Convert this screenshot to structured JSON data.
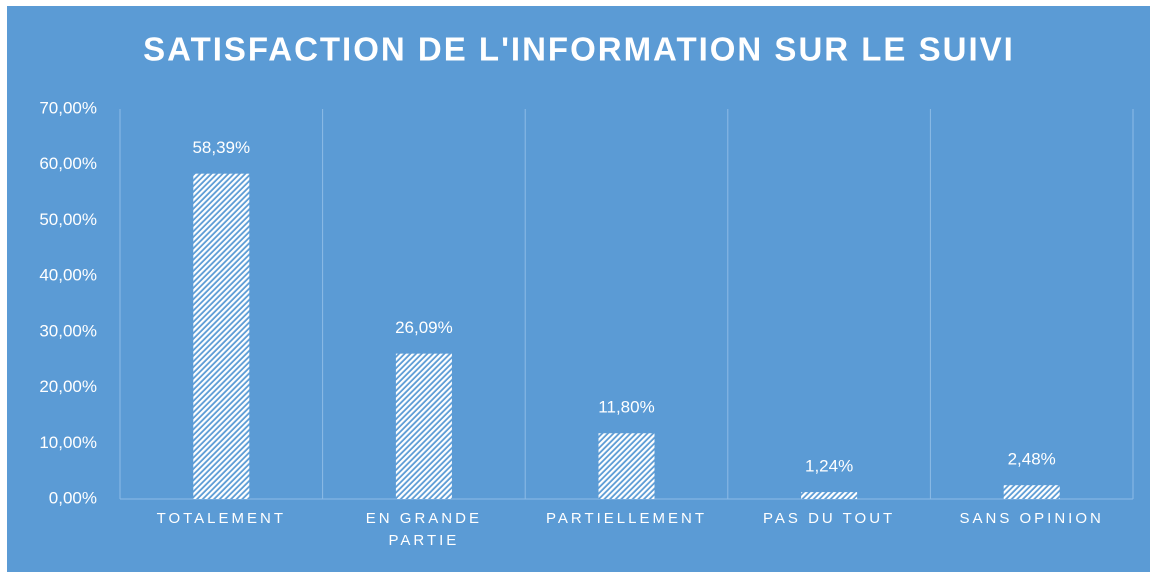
{
  "chart_data": {
    "type": "bar",
    "title": "SATISFACTION DE L'INFORMATION SUR LE SUIVI",
    "categories": [
      "TOTALEMENT",
      "EN GRANDE PARTIE",
      "PARTIELLEMENT",
      "PAS DU TOUT",
      "SANS OPINION"
    ],
    "values": [
      58.39,
      26.09,
      11.8,
      1.24,
      2.48
    ],
    "value_labels": [
      "58,39%",
      "26,09%",
      "11,80%",
      "1,24%",
      "2,48%"
    ],
    "color": "#ffffff",
    "ylim": [
      0,
      70
    ],
    "yticks": [
      {
        "value": 0,
        "label": "0,00%"
      },
      {
        "value": 10,
        "label": "10,00%"
      },
      {
        "value": 20,
        "label": "20,00%"
      },
      {
        "value": 30,
        "label": "30,00%"
      },
      {
        "value": 40,
        "label": "40,00%"
      },
      {
        "value": 50,
        "label": "50,00%"
      },
      {
        "value": 60,
        "label": "60,00%"
      },
      {
        "value": 70,
        "label": "70,00%"
      }
    ],
    "grid": true
  }
}
